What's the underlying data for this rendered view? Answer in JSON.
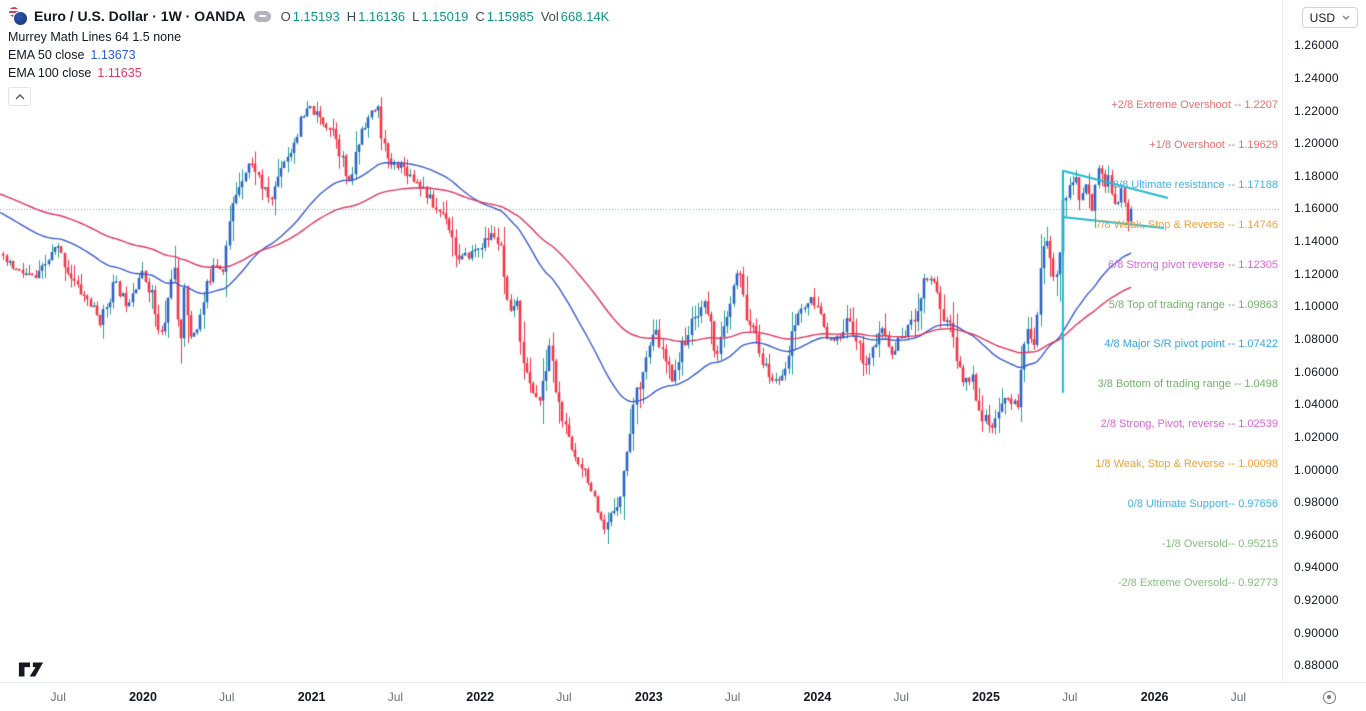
{
  "header": {
    "title": "Euro / U.S. Dollar · 1W · OANDA",
    "ohlc": [
      {
        "label": "O",
        "value": "1.15193"
      },
      {
        "label": "H",
        "value": "1.16136"
      },
      {
        "label": "L",
        "value": "1.15019"
      },
      {
        "label": "C",
        "value": "1.15985"
      },
      {
        "label": "Vol",
        "value": "668.14K"
      }
    ],
    "ohlc_value_color": "#089981",
    "indicators": {
      "murrey_title": "Murrey Math Lines 64 1.5 none",
      "ema50_label": "EMA 50 close",
      "ema50_value": "1.13673",
      "ema50_color": "#2d5be0",
      "ema100_label": "EMA 100 close",
      "ema100_value": "1.11635",
      "ema100_color": "#e0365f"
    }
  },
  "currency_selector": {
    "value": "USD"
  },
  "price_axis": {
    "labels": [
      "1.26000",
      "1.24000",
      "1.22000",
      "1.20000",
      "1.18000",
      "1.16000",
      "1.14000",
      "1.12000",
      "1.10000",
      "1.08000",
      "1.06000",
      "1.04000",
      "1.02000",
      "1.00000",
      "0.98000",
      "0.96000",
      "0.94000",
      "0.92000",
      "0.90000",
      "0.88000"
    ]
  },
  "time_axis": {
    "labels": [
      {
        "text": "Jul",
        "t": 2019.497,
        "bold": false
      },
      {
        "text": "2020",
        "t": 2020.0,
        "bold": true
      },
      {
        "text": "Jul",
        "t": 2020.497,
        "bold": false
      },
      {
        "text": "2021",
        "t": 2021.0,
        "bold": true
      },
      {
        "text": "Jul",
        "t": 2021.497,
        "bold": false
      },
      {
        "text": "2022",
        "t": 2022.0,
        "bold": true
      },
      {
        "text": "Jul",
        "t": 2022.497,
        "bold": false
      },
      {
        "text": "2023",
        "t": 2023.0,
        "bold": true
      },
      {
        "text": "Jul",
        "t": 2023.497,
        "bold": false
      },
      {
        "text": "2024",
        "t": 2024.0,
        "bold": true
      },
      {
        "text": "Jul",
        "t": 2024.497,
        "bold": false
      },
      {
        "text": "2025",
        "t": 2025.0,
        "bold": true
      },
      {
        "text": "Jul",
        "t": 2025.497,
        "bold": false
      },
      {
        "text": "2026",
        "t": 2026.0,
        "bold": true
      },
      {
        "text": "Jul",
        "t": 2026.497,
        "bold": false
      }
    ]
  },
  "murrey_levels": [
    {
      "text": "+2/8 Extreme Overshoot --  1.2207",
      "price": 1.2207,
      "color": "#e8706e"
    },
    {
      "text": "+1/8 Overshoot --  1.19629",
      "price": 1.19629,
      "color": "#e8706e"
    },
    {
      "text": "8/8 Ultimate resistance --  1.17188",
      "price": 1.17188,
      "color": "#45b3e8"
    },
    {
      "text": "7/8 Weak, Stop & Reverse --  1.14746",
      "price": 1.14746,
      "color": "#f2a13a"
    },
    {
      "text": "6/8 Strong pivot reverse --  1.12305",
      "price": 1.12305,
      "color": "#d966d9"
    },
    {
      "text": "5/8 Top of trading range --  1.09863",
      "price": 1.09863,
      "color": "#74b26c"
    },
    {
      "text": "4/8 Major S/R pivot point --  1.07422",
      "price": 1.07422,
      "color": "#38a5e5"
    },
    {
      "text": "3/8 Bottom of trading range --  1.0498",
      "price": 1.0498,
      "color": "#74b26c"
    },
    {
      "text": "2/8 Strong, Pivot, reverse --  1.02539",
      "price": 1.02539,
      "color": "#d966d9"
    },
    {
      "text": "1/8 Weak, Stop & Reverse --  1.00098",
      "price": 1.00098,
      "color": "#f2a13a"
    },
    {
      "text": "0/8 Ultimate Support--  0.97656",
      "price": 0.97656,
      "color": "#45b3e8"
    },
    {
      "text": "-1/8 Oversold--  0.95215",
      "price": 0.95215,
      "color": "#84bd80"
    },
    {
      "text": "-2/8 Extreme Oversold--  0.92773",
      "price": 0.92773,
      "color": "#84bd80"
    }
  ],
  "chart_data": {
    "type": "candlestick",
    "title": "Euro / U.S. Dollar",
    "interval": "1W",
    "exchange": "OANDA",
    "seed": 11,
    "y_axis": {
      "min": 0.88,
      "max": 1.26,
      "tick": 0.02,
      "grid": false
    },
    "current_price": 1.15985,
    "last_candle": {
      "open": 1.15193,
      "high": 1.16136,
      "low": 1.15019,
      "close": 1.15985,
      "volume": "668.14K"
    },
    "ema50": {
      "period": 50,
      "last": 1.13673
    },
    "ema100": {
      "period": 100,
      "last": 1.11635
    },
    "render_start": 2019.15,
    "prehistory_anchors": [
      [
        2017.6,
        1.175
      ],
      [
        2017.9,
        1.186
      ],
      [
        2018.1,
        1.232
      ],
      [
        2018.3,
        1.225
      ],
      [
        2018.45,
        1.177
      ],
      [
        2018.6,
        1.162
      ],
      [
        2018.75,
        1.155
      ],
      [
        2018.9,
        1.134
      ],
      [
        2019.0,
        1.143
      ],
      [
        2019.08,
        1.136
      ]
    ],
    "weekly_close_anchors": [
      [
        2019.152,
        1.13
      ],
      [
        2019.25,
        1.122
      ],
      [
        2019.37,
        1.117
      ],
      [
        2019.49,
        1.137
      ],
      [
        2019.56,
        1.121
      ],
      [
        2019.62,
        1.11
      ],
      [
        2019.68,
        1.103
      ],
      [
        2019.75,
        1.09
      ],
      [
        2019.83,
        1.115
      ],
      [
        2019.9,
        1.102
      ],
      [
        2019.99,
        1.121
      ],
      [
        2020.05,
        1.109
      ],
      [
        2020.1,
        1.079
      ],
      [
        2020.14,
        1.095
      ],
      [
        2020.18,
        1.131
      ],
      [
        2020.215,
        1.069
      ],
      [
        2020.245,
        1.114
      ],
      [
        2020.27,
        1.08
      ],
      [
        2020.33,
        1.089
      ],
      [
        2020.42,
        1.129
      ],
      [
        2020.47,
        1.122
      ],
      [
        2020.54,
        1.166
      ],
      [
        2020.58,
        1.178
      ],
      [
        2020.63,
        1.188
      ],
      [
        2020.67,
        1.184
      ],
      [
        2020.71,
        1.172
      ],
      [
        2020.76,
        1.165
      ],
      [
        2020.82,
        1.187
      ],
      [
        2020.88,
        1.196
      ],
      [
        2020.93,
        1.212
      ],
      [
        2020.99,
        1.222
      ],
      [
        2021.03,
        1.217
      ],
      [
        2021.08,
        1.212
      ],
      [
        2021.14,
        1.208
      ],
      [
        2021.22,
        1.173
      ],
      [
        2021.3,
        1.21
      ],
      [
        2021.39,
        1.2225
      ],
      [
        2021.45,
        1.187
      ],
      [
        2021.53,
        1.187
      ],
      [
        2021.6,
        1.179
      ],
      [
        2021.66,
        1.173
      ],
      [
        2021.73,
        1.16
      ],
      [
        2021.8,
        1.156
      ],
      [
        2021.87,
        1.128
      ],
      [
        2021.94,
        1.132
      ],
      [
        2022.0,
        1.137
      ],
      [
        2022.08,
        1.145
      ],
      [
        2022.12,
        1.1345
      ],
      [
        2022.17,
        1.091
      ],
      [
        2022.21,
        1.105
      ],
      [
        2022.28,
        1.054
      ],
      [
        2022.36,
        1.041
      ],
      [
        2022.41,
        1.0765
      ],
      [
        2022.46,
        1.0425
      ],
      [
        2022.52,
        1.018
      ],
      [
        2022.56,
        1.008
      ],
      [
        2022.6,
        1.0035
      ],
      [
        2022.64,
        0.996
      ],
      [
        2022.7,
        0.969
      ],
      [
        2022.74,
        0.961
      ],
      [
        2022.79,
        0.975
      ],
      [
        2022.84,
        0.988
      ],
      [
        2022.9,
        1.035
      ],
      [
        2022.97,
        1.064
      ],
      [
        2023.04,
        1.085
      ],
      [
        2023.09,
        1.068
      ],
      [
        2023.14,
        1.056
      ],
      [
        2023.21,
        1.079
      ],
      [
        2023.3,
        1.099
      ],
      [
        2023.34,
        1.102
      ],
      [
        2023.4,
        1.0705
      ],
      [
        2023.46,
        1.089
      ],
      [
        2023.53,
        1.123
      ],
      [
        2023.58,
        1.095
      ],
      [
        2023.64,
        1.079
      ],
      [
        2023.7,
        1.059
      ],
      [
        2023.76,
        1.053
      ],
      [
        2023.82,
        1.068
      ],
      [
        2023.88,
        1.095
      ],
      [
        2023.96,
        1.104
      ],
      [
        2024.03,
        1.094
      ],
      [
        2024.08,
        1.077
      ],
      [
        2024.15,
        1.082
      ],
      [
        2024.19,
        1.094
      ],
      [
        2024.28,
        1.064
      ],
      [
        2024.34,
        1.076
      ],
      [
        2024.39,
        1.087
      ],
      [
        2024.44,
        1.07
      ],
      [
        2024.5,
        1.082
      ],
      [
        2024.57,
        1.091
      ],
      [
        2024.64,
        1.118
      ],
      [
        2024.7,
        1.116
      ],
      [
        2024.74,
        1.0935
      ],
      [
        2024.8,
        1.088
      ],
      [
        2024.85,
        1.0545
      ],
      [
        2024.92,
        1.056
      ],
      [
        2024.97,
        1.035
      ],
      [
        2025.03,
        1.0245
      ],
      [
        2025.08,
        1.033
      ],
      [
        2025.12,
        1.049
      ],
      [
        2025.16,
        1.038
      ],
      [
        2025.2,
        1.045
      ],
      [
        2025.24,
        1.088
      ],
      [
        2025.29,
        1.079
      ],
      [
        2025.33,
        1.135
      ],
      [
        2025.36,
        1.139
      ],
      [
        2025.39,
        1.121
      ],
      [
        2025.41,
        1.117
      ],
      [
        2025.44,
        1.142
      ],
      [
        2025.47,
        1.169
      ],
      [
        2025.5,
        1.1725
      ],
      [
        2025.53,
        1.1785
      ],
      [
        2025.56,
        1.166
      ],
      [
        2025.6,
        1.1745
      ],
      [
        2025.63,
        1.162
      ],
      [
        2025.66,
        1.1885
      ],
      [
        2025.7,
        1.1735
      ],
      [
        2025.73,
        1.181
      ],
      [
        2025.77,
        1.156
      ],
      [
        2025.8,
        1.173
      ],
      [
        2025.83,
        1.1565
      ],
      [
        2025.86,
        1.151
      ],
      [
        2025.873,
        1.15985
      ]
    ],
    "drawings": {
      "color": "#1fbad1",
      "vertical_line": {
        "t": 2025.456,
        "p_top": 1.1836,
        "p_bottom": 1.047
      },
      "trendlines": [
        {
          "t1": 2025.462,
          "p1": 1.183,
          "t2": 2026.079,
          "p2": 1.1664
        },
        {
          "t1": 2025.451,
          "p1": 1.1548,
          "t2": 2026.056,
          "p2": 1.148
        }
      ]
    },
    "colors": {
      "up_body": "#2d63c8",
      "up_wick": "#2aa093",
      "down_body": "#f23645",
      "down_wick": "#f23645",
      "ema50": "#3b5bd0",
      "ema100": "#e0365f",
      "current_price_line": "#2962ff",
      "drawing": "#1fbad1"
    }
  }
}
